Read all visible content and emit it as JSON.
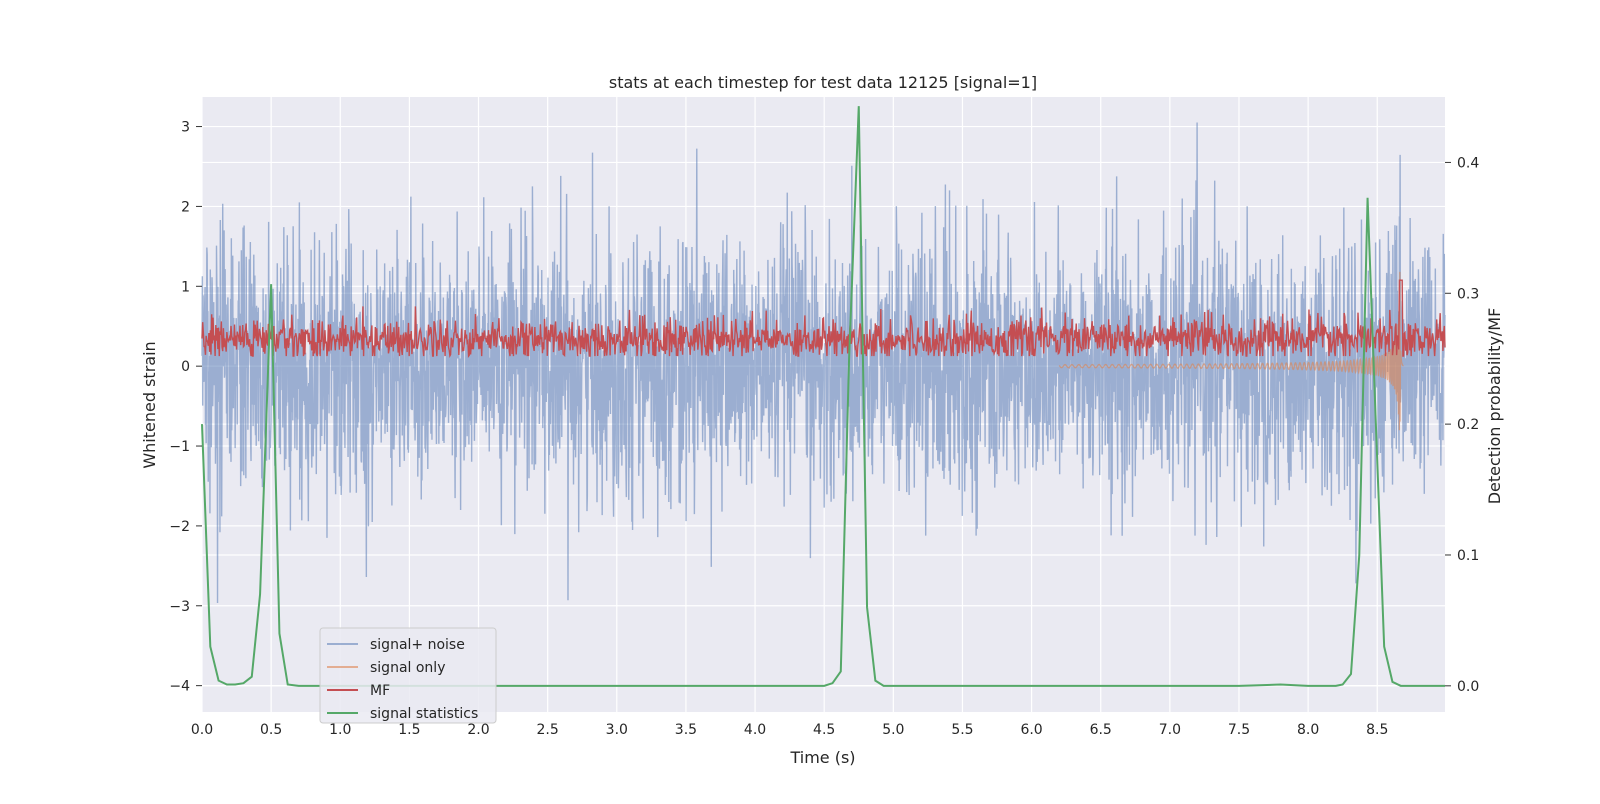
{
  "chart_data": {
    "type": "line",
    "title": "stats at each timestep for test data 12125 [signal=1]",
    "xlabel": "Time (s)",
    "ylabel": "Whitened strain",
    "ylabel_right": "Detection probability/MF",
    "xlim": [
      0.0,
      8.99
    ],
    "ylim": [
      -4.33,
      3.37
    ],
    "ylim_right": [
      -0.02,
      0.45
    ],
    "x_ticks": [
      0.0,
      0.5,
      1.0,
      1.5,
      2.0,
      2.5,
      3.0,
      3.5,
      4.0,
      4.5,
      5.0,
      5.5,
      6.0,
      6.5,
      7.0,
      7.5,
      8.0,
      8.5
    ],
    "x_tick_labels": [
      "0.0",
      "0.5",
      "1.0",
      "1.5",
      "2.0",
      "2.5",
      "3.0",
      "3.5",
      "4.0",
      "4.5",
      "5.0",
      "5.5",
      "6.0",
      "6.5",
      "7.0",
      "7.5",
      "8.0",
      "8.5"
    ],
    "y_ticks": [
      -4,
      -3,
      -2,
      -1,
      0,
      1,
      2,
      3
    ],
    "y_tick_labels": [
      "−4",
      "−3",
      "−2",
      "−1",
      "0",
      "1",
      "2",
      "3"
    ],
    "y_right_ticks": [
      0.0,
      0.1,
      0.2,
      0.3,
      0.4
    ],
    "y_right_tick_labels": [
      "0.0",
      "0.1",
      "0.2",
      "0.3",
      "0.4"
    ],
    "grid": true,
    "legend_position": "lower-left",
    "background": "#eaeaf2",
    "series": [
      {
        "name": "signal+ noise",
        "axis": "left",
        "color": "#4c72b0",
        "opacity": 0.5,
        "style": "dense-noise",
        "noise_sd": 0.8,
        "approx_range": [
          -3.25,
          3.05
        ]
      },
      {
        "name": "signal only",
        "axis": "left",
        "color": "#dd8452",
        "opacity": 0.6,
        "style": "chirp",
        "merger_time": 8.67,
        "peak_amplitude": 1.35,
        "min_amplitude": -1.45
      },
      {
        "name": "MF",
        "axis": "right",
        "color": "#c44e52",
        "style": "band",
        "x_range": [
          0.0,
          8.99
        ],
        "baseline": 0.265,
        "band_low": 0.252,
        "band_high": 0.29,
        "spike": [
          8.67,
          0.31
        ]
      },
      {
        "name": "signal statistics",
        "axis": "right",
        "color": "#55a868",
        "style": "line",
        "x": [
          0.0,
          0.06,
          0.12,
          0.18,
          0.24,
          0.3,
          0.36,
          0.42,
          0.5,
          0.56,
          0.62,
          0.7,
          1.5,
          2.5,
          3.5,
          4.0,
          4.5,
          4.56,
          4.62,
          4.68,
          4.75,
          4.81,
          4.87,
          4.93,
          5.0,
          6.0,
          7.0,
          7.5,
          7.8,
          8.0,
          8.2,
          8.25,
          8.31,
          8.37,
          8.43,
          8.49,
          8.55,
          8.61,
          8.67,
          8.75,
          8.85,
          8.99
        ],
        "values": [
          0.2,
          0.03,
          0.004,
          0.001,
          0.001,
          0.002,
          0.007,
          0.07,
          0.307,
          0.04,
          0.001,
          0.0,
          0.0,
          0.0,
          0.0,
          0.0,
          0.0,
          0.002,
          0.011,
          0.25,
          0.443,
          0.06,
          0.004,
          0.0,
          0.0,
          0.0,
          0.0,
          0.0,
          0.001,
          0.0,
          0.0,
          0.001,
          0.009,
          0.1,
          0.373,
          0.2,
          0.03,
          0.003,
          0.0,
          0.0,
          0.0,
          0.0
        ]
      }
    ]
  }
}
